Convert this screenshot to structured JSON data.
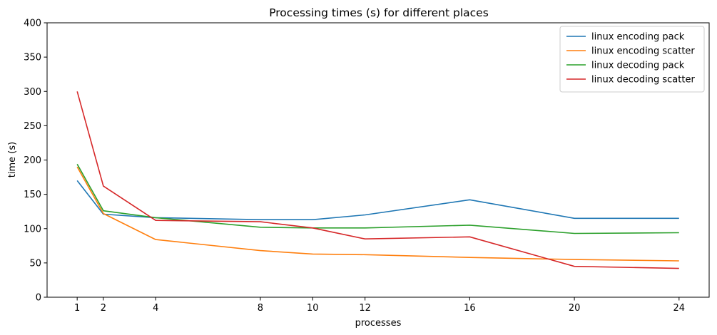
{
  "chart_data": {
    "type": "line",
    "title": "Processing times (s) for different places",
    "xlabel": "processes",
    "ylabel": "time (s)",
    "x": [
      1,
      2,
      4,
      8,
      10,
      12,
      16,
      20,
      24
    ],
    "xticks": [
      1,
      2,
      4,
      8,
      10,
      12,
      16,
      20,
      24
    ],
    "xlim": [
      -0.15,
      25.15
    ],
    "ylim": [
      0,
      400
    ],
    "yticks": [
      0,
      50,
      100,
      150,
      200,
      250,
      300,
      350,
      400
    ],
    "grid": false,
    "legend_position": "top-right",
    "series": [
      {
        "name": "linux encoding pack",
        "color": "#1f77b4",
        "values": [
          170,
          121,
          116,
          113,
          113,
          120,
          142,
          115,
          115
        ]
      },
      {
        "name": "linux encoding scatter",
        "color": "#ff7f0e",
        "values": [
          190,
          122,
          84,
          68,
          63,
          62,
          58,
          55,
          53
        ]
      },
      {
        "name": "linux decoding pack",
        "color": "#2ca02c",
        "values": [
          194,
          126,
          116,
          102,
          101,
          101,
          105,
          93,
          94
        ]
      },
      {
        "name": "linux decoding scatter",
        "color": "#d62728",
        "values": [
          300,
          162,
          112,
          110,
          101,
          85,
          88,
          45,
          42
        ]
      }
    ]
  }
}
